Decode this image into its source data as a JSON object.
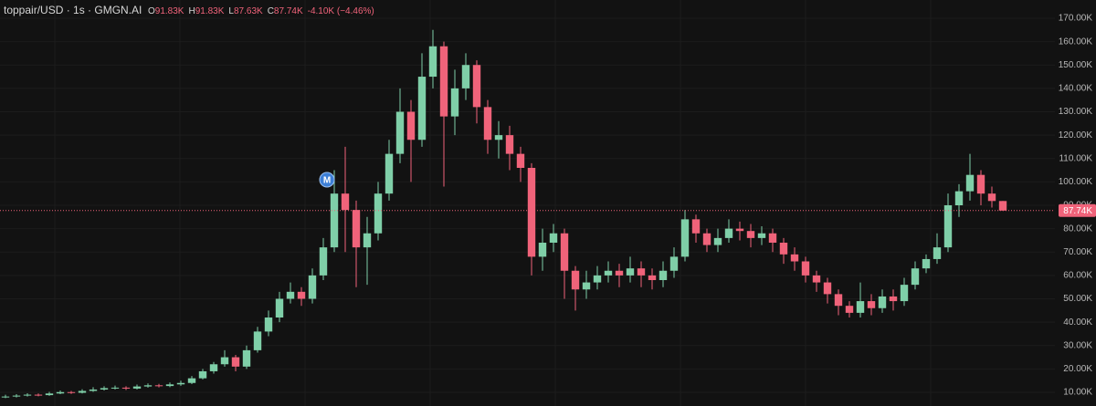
{
  "chart_data": {
    "type": "candlestick",
    "title": "toppair/USD · 1s · GMGN.AI",
    "legend_values": [
      {
        "key": "O",
        "value": "91.83K"
      },
      {
        "key": "H",
        "value": "91.83K"
      },
      {
        "key": "L",
        "value": "87.63K"
      },
      {
        "key": "C",
        "value": "87.74K"
      }
    ],
    "change": "-4.10K (−4.46%)",
    "marker_label": "M",
    "up_color": "#7fcfa8",
    "down_color": "#f0637a",
    "grid": true,
    "ylim": [
      4.15,
      177.8
    ],
    "yticks": [
      {
        "value": 10,
        "label": "10.00K"
      },
      {
        "value": 20,
        "label": "20.00K"
      },
      {
        "value": 30,
        "label": "30.00K"
      },
      {
        "value": 40,
        "label": "40.00K"
      },
      {
        "value": 50,
        "label": "50.00K"
      },
      {
        "value": 60,
        "label": "60.00K"
      },
      {
        "value": 70,
        "label": "70.00K"
      },
      {
        "value": 80,
        "label": "80.00K"
      },
      {
        "value": 90,
        "label": "90.00K"
      },
      {
        "value": 100,
        "label": "100.00K"
      },
      {
        "value": 110,
        "label": "110.00K"
      },
      {
        "value": 120,
        "label": "120.00K"
      },
      {
        "value": 130,
        "label": "130.00K"
      },
      {
        "value": 140,
        "label": "140.00K"
      },
      {
        "value": 150,
        "label": "150.00K"
      },
      {
        "value": 160,
        "label": "160.00K"
      },
      {
        "value": 170,
        "label": "170.00K"
      }
    ],
    "last_price": {
      "value": 87.74,
      "label": "87.74K"
    },
    "open": [
      8,
      8.2,
      8.6,
      9,
      8.8,
      9.5,
      10.1,
      9.8,
      10.6,
      11.2,
      11.8,
      12,
      11.6,
      12.5,
      13,
      12.7,
      13.4,
      14,
      16,
      19,
      22,
      25,
      21,
      28,
      36,
      42,
      50,
      53,
      50,
      60,
      72,
      95,
      88,
      72,
      78,
      95,
      112,
      130,
      118,
      145,
      158,
      128,
      140,
      150,
      132,
      118,
      120,
      112,
      106,
      68,
      74,
      78,
      62,
      54,
      57,
      60,
      62,
      60,
      63,
      60,
      58,
      62,
      68,
      84,
      78,
      73,
      76,
      80,
      79,
      76,
      78,
      74,
      69,
      66,
      60,
      57,
      52,
      47,
      44,
      49,
      46,
      51,
      49,
      56,
      63,
      67,
      72,
      90,
      96,
      103,
      95,
      91.83
    ],
    "high": [
      9,
      9.2,
      9.6,
      9.5,
      10.2,
      10.8,
      10.6,
      11.3,
      12.2,
      12.6,
      12.9,
      12.6,
      13.3,
      13.8,
      13.6,
      14.2,
      15,
      17,
      20,
      23,
      28,
      26,
      30,
      38,
      45,
      53,
      57,
      55,
      63,
      76,
      105,
      115,
      92,
      85,
      100,
      118,
      140,
      135,
      155,
      165,
      160,
      148,
      155,
      152,
      135,
      126,
      124,
      115,
      108,
      80,
      82,
      80,
      64,
      62,
      64,
      66,
      65,
      68,
      66,
      63,
      66,
      72,
      88,
      86,
      80,
      80,
      84,
      83,
      82,
      81,
      80,
      76,
      72,
      68,
      62,
      59,
      54,
      49,
      57,
      52,
      54,
      54,
      59,
      66,
      69,
      78,
      95,
      99,
      112,
      105,
      98,
      91.83
    ],
    "low": [
      7.5,
      7.8,
      8.2,
      8.3,
      8.5,
      9.2,
      9.3,
      9.5,
      10.2,
      10.8,
      11.2,
      11,
      11.2,
      12,
      12.1,
      12.2,
      12.8,
      13.5,
      15.5,
      18,
      21,
      19,
      20,
      27,
      34,
      40,
      48,
      47,
      48,
      58,
      70,
      70,
      55,
      56,
      75,
      92,
      108,
      100,
      115,
      140,
      98,
      120,
      135,
      125,
      112,
      110,
      105,
      100,
      60,
      62,
      70,
      50,
      45,
      50,
      54,
      57,
      55,
      57,
      55,
      54,
      55,
      59,
      66,
      74,
      70,
      70,
      74,
      75,
      72,
      73,
      70,
      65,
      62,
      57,
      53,
      48,
      43,
      42,
      42,
      43,
      44,
      45,
      47,
      54,
      61,
      65,
      70,
      85,
      92,
      90,
      89,
      87.63
    ],
    "close": [
      8.2,
      8.6,
      9,
      8.8,
      9.5,
      10.1,
      9.8,
      10.6,
      11.2,
      11.8,
      12,
      11.6,
      12.5,
      13,
      12.7,
      13.4,
      14,
      16,
      19,
      22,
      25,
      21,
      28,
      36,
      42,
      50,
      53,
      50,
      60,
      72,
      95,
      88,
      72,
      78,
      95,
      112,
      130,
      118,
      145,
      158,
      128,
      140,
      150,
      132,
      118,
      120,
      112,
      106,
      68,
      74,
      78,
      62,
      54,
      57,
      60,
      62,
      60,
      63,
      60,
      58,
      62,
      68,
      84,
      78,
      73,
      76,
      80,
      79,
      76,
      78,
      74,
      69,
      66,
      60,
      57,
      52,
      47,
      44,
      49,
      46,
      51,
      49,
      56,
      63,
      67,
      72,
      90,
      96,
      103,
      95,
      91.83,
      87.74
    ]
  }
}
